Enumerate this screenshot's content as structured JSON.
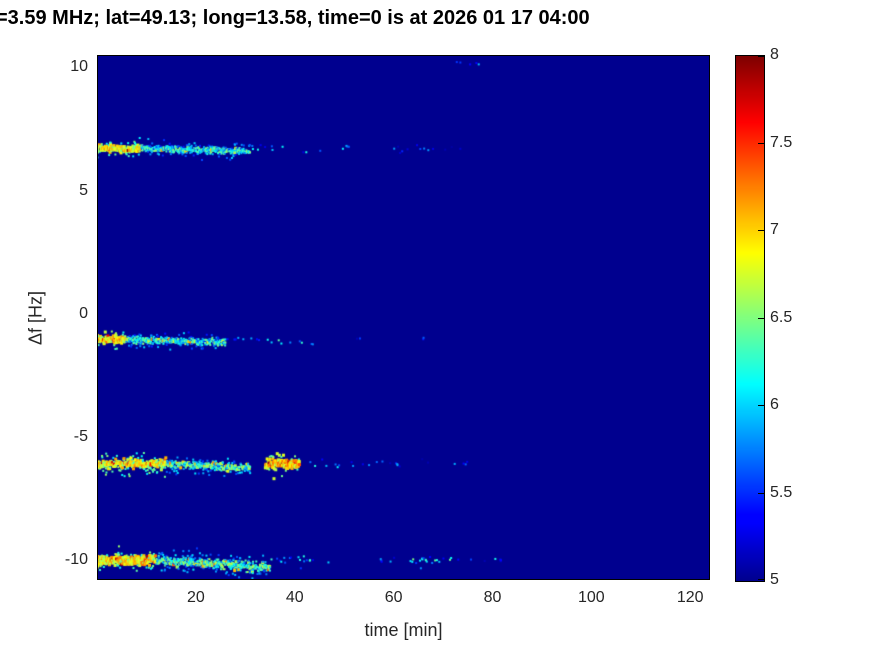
{
  "chart_data": {
    "type": "heatmap",
    "title": "=3.59 MHz;  lat=49.13; long=13.58, time=0 is at 2026 01 17 04:00",
    "xlabel": "time [min]",
    "ylabel": "Δf [Hz]",
    "xlim": [
      0,
      124
    ],
    "ylim": [
      -10.8,
      10.5
    ],
    "xticks": [
      20,
      40,
      60,
      80,
      100,
      120
    ],
    "yticks": [
      -10,
      -5,
      0,
      5,
      10
    ],
    "grid": false,
    "colormap": "jet",
    "colorbar": {
      "min": 5,
      "max": 8,
      "ticks": [
        5,
        5.5,
        6,
        6.5,
        7,
        7.5,
        8
      ]
    },
    "background_value": 5.0,
    "bands": [
      {
        "name": "doppler-band-plus-6.7Hz",
        "df": 6.7,
        "segments": [
          {
            "t0": 0,
            "t1": 9,
            "v": 6.8,
            "density": 1.0,
            "halfwidth": 0.22,
            "drift": 0
          },
          {
            "t0": 9,
            "t1": 31,
            "v": 6.2,
            "density": 0.9,
            "halfwidth": 0.2,
            "drift": -0.1
          },
          {
            "t0": 31,
            "t1": 38,
            "v": 5.9,
            "density": 0.4,
            "halfwidth": 0.18,
            "drift": 0
          },
          {
            "t0": 40,
            "t1": 46,
            "v": 5.9,
            "density": 0.35,
            "halfwidth": 0.18,
            "drift": -0.1
          },
          {
            "t0": 48,
            "t1": 52,
            "v": 5.7,
            "density": 0.3,
            "halfwidth": 0.15,
            "drift": 0
          },
          {
            "t0": 60,
            "t1": 74,
            "v": 5.5,
            "density": 0.22,
            "halfwidth": 0.14,
            "drift": 0
          }
        ]
      },
      {
        "name": "doppler-band-minus-1.1Hz",
        "df": -1.05,
        "segments": [
          {
            "t0": 0,
            "t1": 6,
            "v": 6.9,
            "density": 1.0,
            "halfwidth": 0.22,
            "drift": 0
          },
          {
            "t0": 6,
            "t1": 26,
            "v": 6.2,
            "density": 0.85,
            "halfwidth": 0.2,
            "drift": -0.1
          },
          {
            "t0": 26,
            "t1": 33,
            "v": 5.7,
            "density": 0.35,
            "halfwidth": 0.15,
            "drift": 0
          },
          {
            "t0": 34,
            "t1": 44,
            "v": 6.0,
            "density": 0.5,
            "halfwidth": 0.18,
            "drift": -0.1
          },
          {
            "t0": 52,
            "t1": 57,
            "v": 5.6,
            "density": 0.2,
            "halfwidth": 0.12,
            "drift": 0
          },
          {
            "t0": 66,
            "t1": 69,
            "v": 5.7,
            "density": 0.25,
            "halfwidth": 0.12,
            "drift": 0
          }
        ]
      },
      {
        "name": "doppler-band-minus-6.1Hz",
        "df": -6.1,
        "segments": [
          {
            "t0": 0,
            "t1": 14,
            "v": 6.8,
            "density": 1.0,
            "halfwidth": 0.28,
            "drift": 0
          },
          {
            "t0": 14,
            "t1": 31,
            "v": 6.3,
            "density": 0.9,
            "halfwidth": 0.25,
            "drift": -0.15
          },
          {
            "t0": 34,
            "t1": 41,
            "v": 7.0,
            "density": 0.95,
            "halfwidth": 0.3,
            "drift": 0
          },
          {
            "t0": 41,
            "t1": 49,
            "v": 6.0,
            "density": 0.55,
            "halfwidth": 0.2,
            "drift": 0
          },
          {
            "t0": 50,
            "t1": 66,
            "v": 5.5,
            "density": 0.2,
            "halfwidth": 0.15,
            "drift": 0
          },
          {
            "t0": 66,
            "t1": 81,
            "v": 5.5,
            "density": 0.18,
            "halfwidth": 0.12,
            "drift": 0
          }
        ]
      },
      {
        "name": "doppler-band-minus-10Hz",
        "df": -10.0,
        "segments": [
          {
            "t0": 0,
            "t1": 12,
            "v": 6.9,
            "density": 1.0,
            "halfwidth": 0.3,
            "drift": 0
          },
          {
            "t0": 12,
            "t1": 35,
            "v": 6.3,
            "density": 0.95,
            "halfwidth": 0.28,
            "drift": -0.3
          },
          {
            "t0": 35,
            "t1": 47,
            "v": 5.9,
            "density": 0.55,
            "halfwidth": 0.2,
            "drift": 0
          },
          {
            "t0": 55,
            "t1": 63,
            "v": 5.7,
            "density": 0.3,
            "halfwidth": 0.15,
            "drift": 0
          },
          {
            "t0": 63,
            "t1": 72,
            "v": 6.1,
            "density": 0.65,
            "halfwidth": 0.2,
            "drift": 0
          },
          {
            "t0": 72,
            "t1": 85,
            "v": 5.5,
            "density": 0.25,
            "halfwidth": 0.12,
            "drift": 0
          }
        ]
      },
      {
        "name": "speck-top-edge",
        "df": 10.2,
        "segments": [
          {
            "t0": 72,
            "t1": 78,
            "v": 5.7,
            "density": 0.35,
            "halfwidth": 0.12,
            "drift": 0
          }
        ]
      }
    ]
  }
}
